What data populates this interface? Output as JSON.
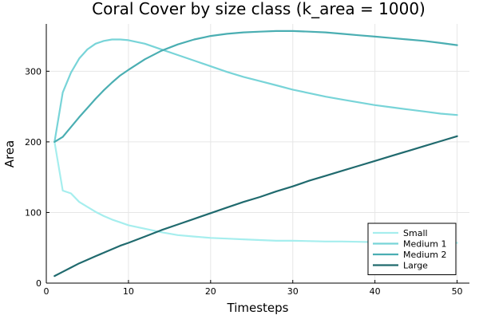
{
  "chart_data": {
    "type": "line",
    "title": "Coral Cover by size class (k_area = 1000)",
    "xlabel": "Timesteps",
    "ylabel": "Area",
    "xlim": [
      0,
      51.5
    ],
    "ylim": [
      0,
      367
    ],
    "xticks": [
      0,
      10,
      20,
      30,
      40,
      50
    ],
    "yticks": [
      0,
      100,
      200,
      300
    ],
    "grid": true,
    "legend_position": "bottom-right",
    "x": [
      1,
      2,
      3,
      4,
      5,
      6,
      7,
      8,
      9,
      10,
      12,
      14,
      16,
      18,
      20,
      22,
      24,
      26,
      28,
      30,
      32,
      34,
      36,
      38,
      40,
      42,
      44,
      46,
      48,
      50
    ],
    "series": [
      {
        "name": "Small",
        "color": "#a6eeee",
        "values": [
          200,
          131,
          127,
          115,
          108,
          101,
          95,
          90,
          86,
          82,
          77,
          72,
          68,
          66,
          64,
          63,
          62,
          61,
          60,
          60,
          59.5,
          59,
          59,
          58.5,
          58,
          58,
          57.5,
          57.5,
          57,
          57
        ]
      },
      {
        "name": "Medium 1",
        "color": "#78d4d8",
        "values": [
          200,
          270,
          298,
          318,
          331,
          339,
          343,
          345,
          345,
          344,
          339,
          331,
          323,
          315,
          307,
          299,
          292,
          286,
          280,
          274,
          269,
          264,
          260,
          256,
          252,
          249,
          246,
          243,
          240,
          238
        ]
      },
      {
        "name": "Medium 2",
        "color": "#4aaeb2",
        "values": [
          200,
          207,
          221,
          235,
          248,
          261,
          273,
          284,
          294,
          302,
          317,
          329,
          338,
          345,
          350,
          353,
          355,
          356,
          357,
          357,
          356,
          355,
          353,
          351,
          349,
          347,
          345,
          343,
          340,
          337
        ]
      },
      {
        "name": "Large",
        "color": "#206a6e",
        "values": [
          10,
          16,
          22,
          28,
          33,
          38,
          43,
          48,
          53,
          57,
          66,
          75,
          83,
          91,
          99,
          107,
          115,
          122,
          130,
          137,
          145,
          152,
          159,
          166,
          173,
          180,
          187,
          194,
          201,
          208
        ]
      }
    ]
  }
}
